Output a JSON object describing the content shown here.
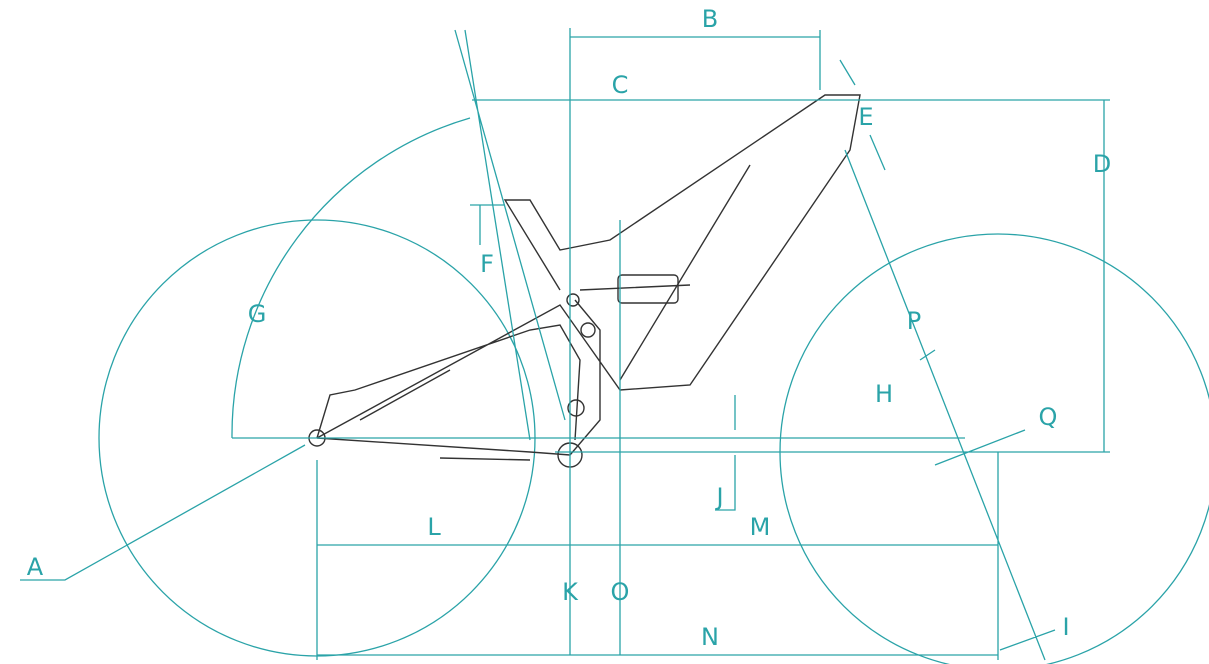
{
  "labels": [
    "A",
    "B",
    "C",
    "D",
    "E",
    "F",
    "G",
    "H",
    "I",
    "J",
    "K",
    "L",
    "M",
    "N",
    "O",
    "P",
    "Q"
  ]
}
